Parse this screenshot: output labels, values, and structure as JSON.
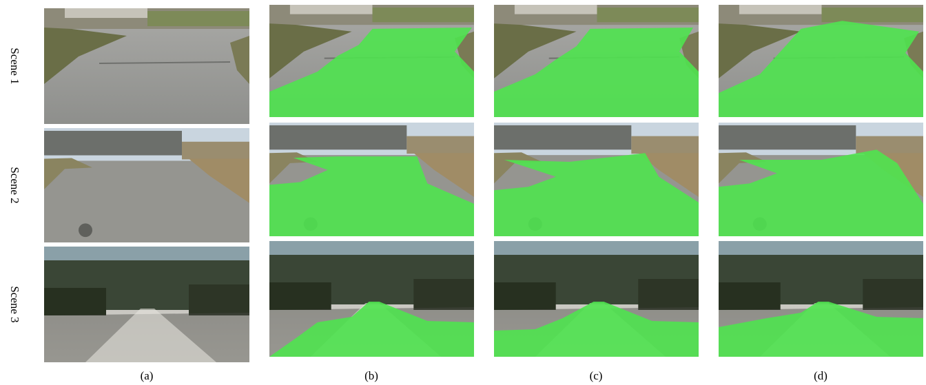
{
  "scene_labels": [
    "Scene 1",
    "Scene 2",
    "Scene 3"
  ],
  "column_labels": [
    "(a)",
    "(b)",
    "(c)",
    "(d)"
  ]
}
